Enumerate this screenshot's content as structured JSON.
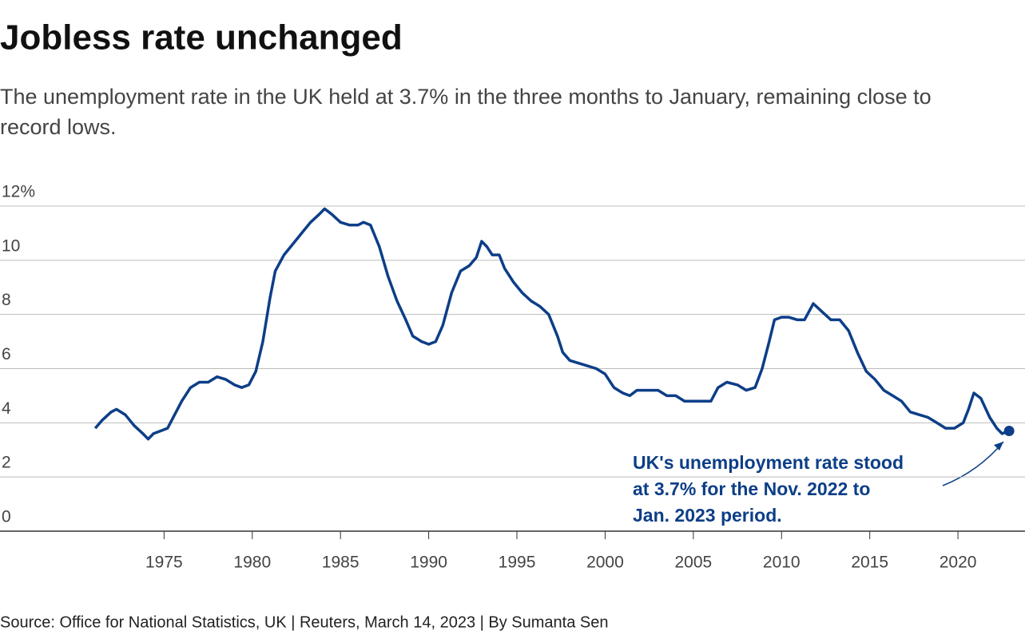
{
  "chart_data": {
    "type": "line",
    "title": "Jobless rate unchanged",
    "subtitle": [
      "The unemployment rate in the UK held at 3.7% in the three months to January, remaining close to",
      "record lows."
    ],
    "source": "Source: Office for National Statistics, UK | Reuters, March 14, 2023 | By Sumanta Sen",
    "annotation": [
      "UK's unemployment rate stood",
      "at 3.7% for the Nov. 2022 to",
      "Jan. 2023 period."
    ],
    "color": "#0d3e87",
    "grid": true,
    "xlim": [
      1965.7,
      2023.8
    ],
    "xticks": [
      1975,
      1980,
      1985,
      1990,
      1995,
      2000,
      2005,
      2010,
      2015,
      2020
    ],
    "ylim": [
      0,
      12
    ],
    "yticks": [
      0,
      2,
      4,
      6,
      8,
      10,
      {
        "value": 12,
        "label": "12%"
      }
    ],
    "x": [
      1971.1,
      1971.5,
      1972,
      1972.3,
      1972.8,
      1973.3,
      1973.8,
      1974.1,
      1974.4,
      1974.8,
      1975.2,
      1975.6,
      1976,
      1976.5,
      1977,
      1977.5,
      1978,
      1978.5,
      1979,
      1979.4,
      1979.8,
      1980.2,
      1980.6,
      1981,
      1981.3,
      1981.8,
      1982.3,
      1982.8,
      1983.3,
      1983.8,
      1984.1,
      1984.5,
      1985,
      1985.5,
      1986,
      1986.3,
      1986.7,
      1987.2,
      1987.7,
      1988.2,
      1988.7,
      1989.1,
      1989.6,
      1990,
      1990.4,
      1990.8,
      1991.3,
      1991.8,
      1992.3,
      1992.7,
      1993,
      1993.3,
      1993.6,
      1994,
      1994.3,
      1994.8,
      1995.3,
      1995.8,
      1996.3,
      1996.8,
      1997.3,
      1997.6,
      1998,
      1998.5,
      1999,
      1999.5,
      2000,
      2000.5,
      2001,
      2001.4,
      2001.8,
      2002.5,
      2003,
      2003.5,
      2004,
      2004.5,
      2005,
      2005.5,
      2006,
      2006.4,
      2006.9,
      2007.5,
      2008,
      2008.5,
      2008.9,
      2009.3,
      2009.6,
      2010,
      2010.4,
      2010.9,
      2011.3,
      2011.8,
      2012.3,
      2012.8,
      2013.3,
      2013.8,
      2014.3,
      2014.8,
      2015.3,
      2015.8,
      2016.3,
      2016.8,
      2017.3,
      2017.8,
      2018.3,
      2018.8,
      2019.3,
      2019.8,
      2020.3,
      2020.6,
      2020.9,
      2021.3,
      2021.8,
      2022.2,
      2022.5,
      2022.9
    ],
    "values": [
      3.8,
      4.1,
      4.4,
      4.5,
      4.3,
      3.9,
      3.6,
      3.4,
      3.6,
      3.7,
      3.8,
      4.3,
      4.8,
      5.3,
      5.5,
      5.5,
      5.7,
      5.6,
      5.4,
      5.3,
      5.4,
      5.9,
      7.0,
      8.6,
      9.6,
      10.2,
      10.6,
      11.0,
      11.4,
      11.7,
      11.9,
      11.7,
      11.4,
      11.3,
      11.3,
      11.4,
      11.3,
      10.5,
      9.4,
      8.5,
      7.8,
      7.2,
      7.0,
      6.9,
      7.0,
      7.6,
      8.8,
      9.6,
      9.8,
      10.1,
      10.7,
      10.5,
      10.2,
      10.2,
      9.7,
      9.2,
      8.8,
      8.5,
      8.3,
      8.0,
      7.2,
      6.6,
      6.3,
      6.2,
      6.1,
      6.0,
      5.8,
      5.3,
      5.1,
      5.0,
      5.2,
      5.2,
      5.2,
      5.0,
      5.0,
      4.8,
      4.8,
      4.8,
      4.8,
      5.3,
      5.5,
      5.4,
      5.2,
      5.3,
      6.0,
      7.0,
      7.8,
      7.9,
      7.9,
      7.8,
      7.8,
      8.4,
      8.1,
      7.8,
      7.8,
      7.4,
      6.6,
      5.9,
      5.6,
      5.2,
      5.0,
      4.8,
      4.4,
      4.3,
      4.2,
      4.0,
      3.8,
      3.8,
      4.0,
      4.5,
      5.1,
      4.9,
      4.2,
      3.8,
      3.6,
      3.7
    ]
  }
}
